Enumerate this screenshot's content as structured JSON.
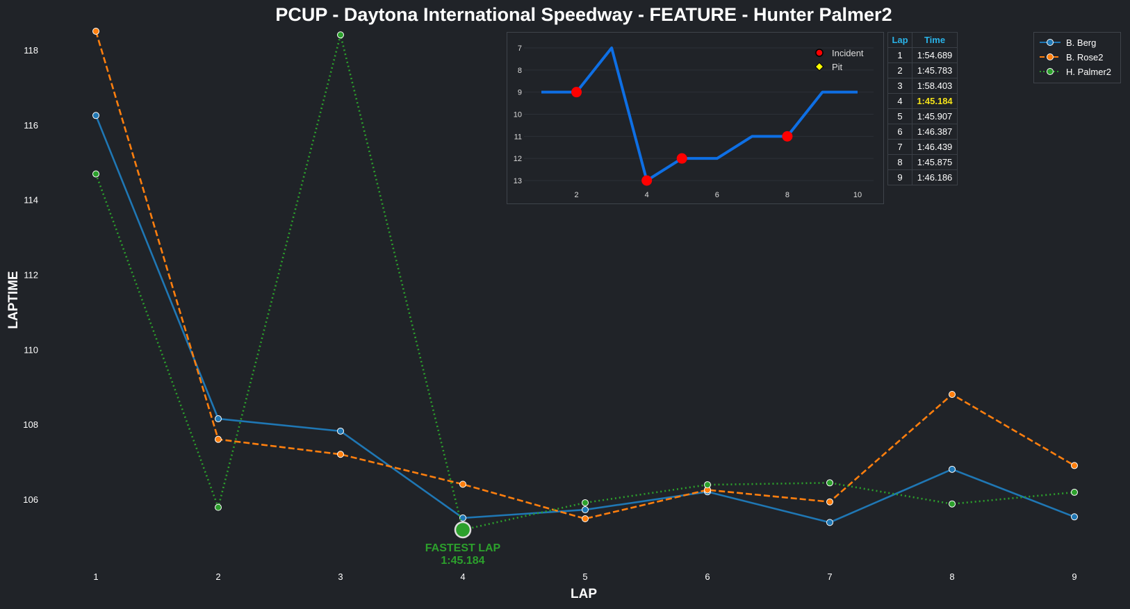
{
  "title": "PCUP - Daytona International Speedway - FEATURE - Hunter Palmer2",
  "chart_data": [
    {
      "type": "line",
      "xlabel": "LAP",
      "ylabel": "LAPTIME",
      "x": [
        1,
        2,
        3,
        4,
        5,
        6,
        7,
        8,
        9
      ],
      "xlim": [
        1,
        9
      ],
      "ylim": [
        104.2,
        118.5
      ],
      "yticks": [
        106,
        108,
        110,
        112,
        114,
        116,
        118
      ],
      "grid": false,
      "legend_position": "top-right",
      "series": [
        {
          "name": "B. Berg",
          "color": "#1f77b4",
          "style": "solid",
          "values": [
            116.25,
            108.15,
            107.82,
            105.5,
            105.72,
            106.2,
            105.38,
            106.8,
            105.53
          ]
        },
        {
          "name": "B. Rose2",
          "color": "#ff7f0e",
          "style": "dashed",
          "values": [
            118.5,
            107.6,
            107.2,
            106.4,
            105.48,
            106.25,
            105.93,
            108.8,
            106.9
          ]
        },
        {
          "name": "H. Palmer2",
          "color": "#2ca02c",
          "style": "dotted",
          "values": [
            114.689,
            105.783,
            118.403,
            105.184,
            105.907,
            106.387,
            106.439,
            105.875,
            106.186
          ]
        }
      ],
      "annotations": [
        {
          "label": "FASTEST LAP",
          "value": "1:45.184",
          "x": 4,
          "y": 105.184,
          "color": "#2ca02c"
        }
      ]
    },
    {
      "type": "line",
      "subtitle": "",
      "x": [
        1,
        2,
        3,
        4,
        5,
        6,
        7,
        8,
        9,
        10
      ],
      "xticks": [
        2,
        4,
        6,
        8,
        10
      ],
      "xlim": [
        1,
        10
      ],
      "y": [
        9,
        9,
        7,
        13,
        12,
        12,
        11,
        11,
        9,
        9
      ],
      "ylim": [
        13,
        7
      ],
      "yticks": [
        7,
        8,
        9,
        10,
        11,
        12,
        13
      ],
      "inverted_y": true,
      "line_color": "#0e6fe4",
      "incident_laps": [
        2,
        4,
        5,
        8
      ],
      "pit_laps": [],
      "incident_color": "#ff0000",
      "pit_color": "#ffff00",
      "legend": {
        "incident_label": "Incident",
        "pit_label": "Pit"
      },
      "grid": true
    },
    {
      "type": "table",
      "headers": {
        "lap": "Lap",
        "time": "Time"
      },
      "header_color": "#2ab3e8",
      "highlight_color": "#f4e21a",
      "rows": [
        {
          "lap": "1",
          "time": "1:54.689"
        },
        {
          "lap": "2",
          "time": "1:45.783"
        },
        {
          "lap": "3",
          "time": "1:58.403"
        },
        {
          "lap": "4",
          "time": "1:45.184",
          "highlight": true
        },
        {
          "lap": "5",
          "time": "1:45.907"
        },
        {
          "lap": "6",
          "time": "1:46.387"
        },
        {
          "lap": "7",
          "time": "1:46.439"
        },
        {
          "lap": "8",
          "time": "1:45.875"
        },
        {
          "lap": "9",
          "time": "1:46.186"
        }
      ]
    }
  ]
}
